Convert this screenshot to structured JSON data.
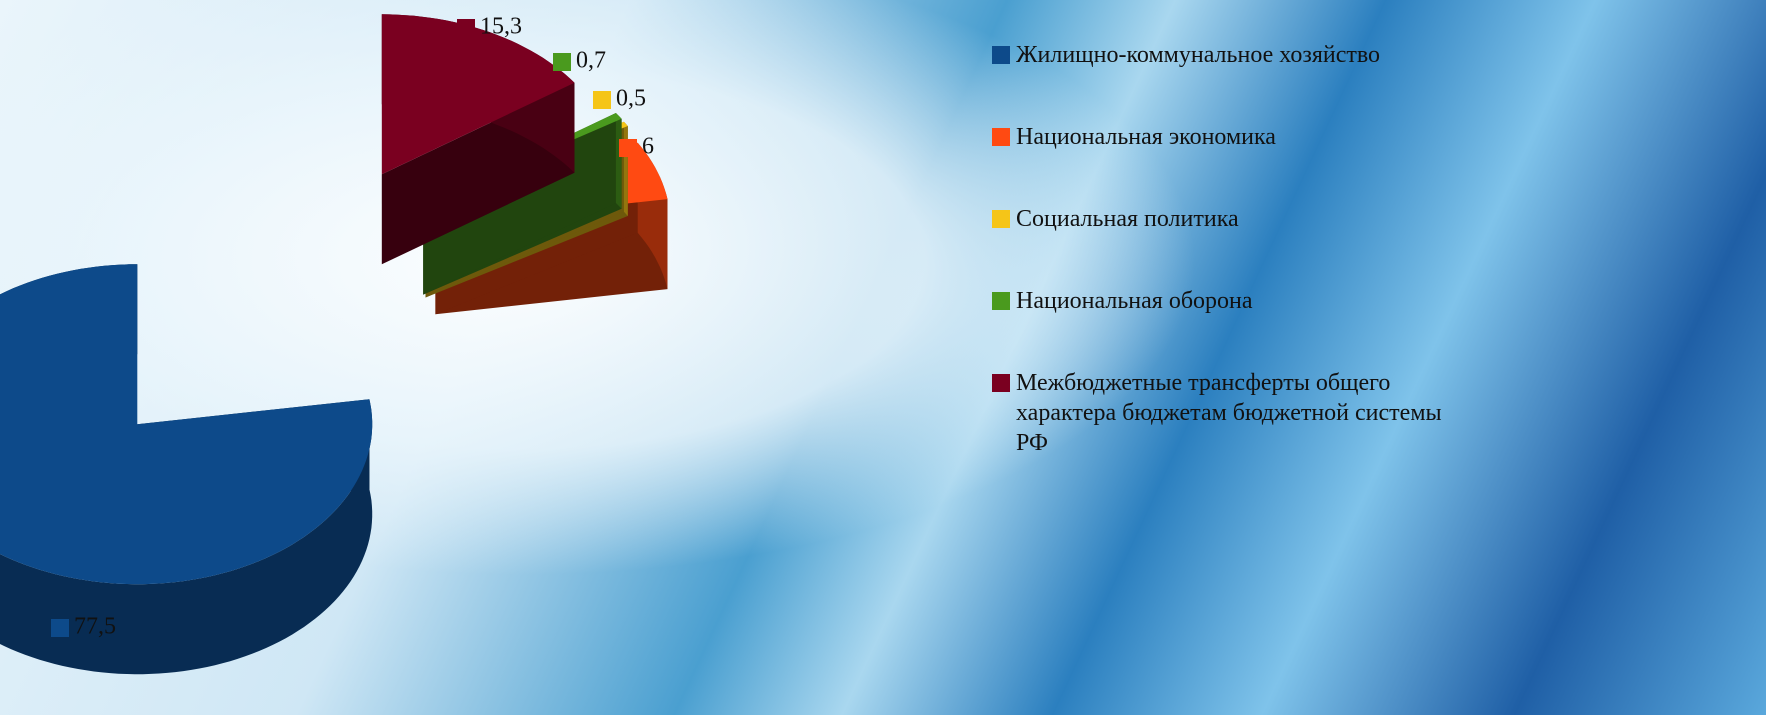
{
  "chart_data": {
    "type": "pie",
    "categories": [
      "Жилищно-коммунальное хозяйство",
      "Национальная экономика",
      "Социальная политика",
      "Национальная оборона",
      "Межбюджетные трансферты общего характера бюджетам бюджетной системы РФ"
    ],
    "values": [
      77.5,
      6,
      0.5,
      0.7,
      15.3
    ],
    "value_labels": [
      "77,5",
      "6",
      "0,5",
      "0,7",
      "15,3"
    ],
    "colors": [
      "#0d4a8a",
      "#ff4a12",
      "#f5c518",
      "#4a9a1e",
      "#7a0020"
    ],
    "legend": "right"
  }
}
